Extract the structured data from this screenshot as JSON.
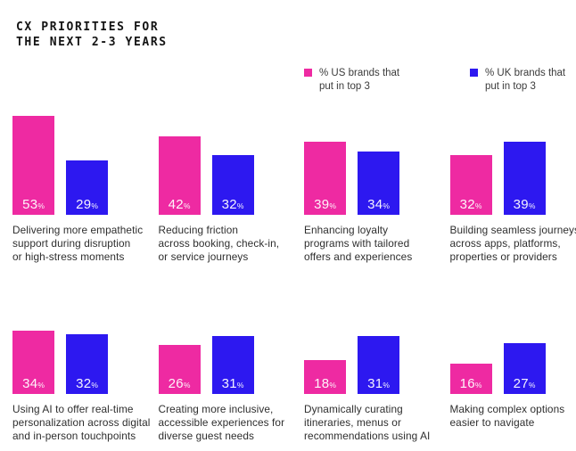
{
  "title": "CX PRIORITIES FOR\nTHE NEXT 2-3 YEARS",
  "unit": "%",
  "colors": {
    "us_pink": "#EE2AA2",
    "uk_blue": "#2D18F0",
    "caption_text": "#2E2E2E",
    "title_text": "#141414",
    "value_label": "#FFFFFF",
    "background": "#FFFFFF"
  },
  "legend": {
    "us": "% US brands that\nput in top 3",
    "uk": "% UK brands that\nput in top 3"
  },
  "captions": [
    "Delivering more empathetic\nsupport during disruption\nor high-stress moments",
    "Reducing friction\nacross booking, check-in,\nor service journeys",
    "Enhancing loyalty\nprograms with tailored\noffers and experiences",
    "Building seamless journeys\nacross apps, platforms,\nproperties or providers",
    "Using AI to offer real-time\npersonalization across digital\nand in-person touchpoints",
    "Creating more inclusive,\naccessible experiences for\ndiverse guest needs",
    "Dynamically curating\nitineraries, menus or\nrecommendations using AI",
    "Making complex options\neasier to navigate"
  ],
  "chart_data": {
    "type": "bar",
    "title": "CX PRIORITIES FOR THE NEXT 2-3 YEARS",
    "categories": [
      "Delivering more empathetic support during disruption or high-stress moments",
      "Reducing friction across booking, check-in, or service journeys",
      "Enhancing loyalty programs with tailored offers and experiences",
      "Building seamless journeys across apps, platforms, properties or providers",
      "Using AI to offer real-time personalization across digital and in-person touchpoints",
      "Creating more inclusive, accessible experiences for diverse guest needs",
      "Dynamically curating itineraries, menus or recommendations using AI",
      "Making complex options easier to navigate"
    ],
    "series": [
      {
        "name": "% US brands that put in top 3",
        "color": "#EE2AA2",
        "values": [
          53,
          42,
          39,
          32,
          34,
          26,
          18,
          16
        ]
      },
      {
        "name": "% UK brands that put in top 3",
        "color": "#2D18F0",
        "values": [
          29,
          32,
          34,
          39,
          32,
          31,
          31,
          27
        ]
      }
    ],
    "unit": "%",
    "value_labels": "inside-bottom-white",
    "legend_position": "top",
    "grid": false,
    "axes_hidden": true,
    "layout": "2 rows x 4 category groups",
    "ylim": [
      0,
      55
    ]
  }
}
